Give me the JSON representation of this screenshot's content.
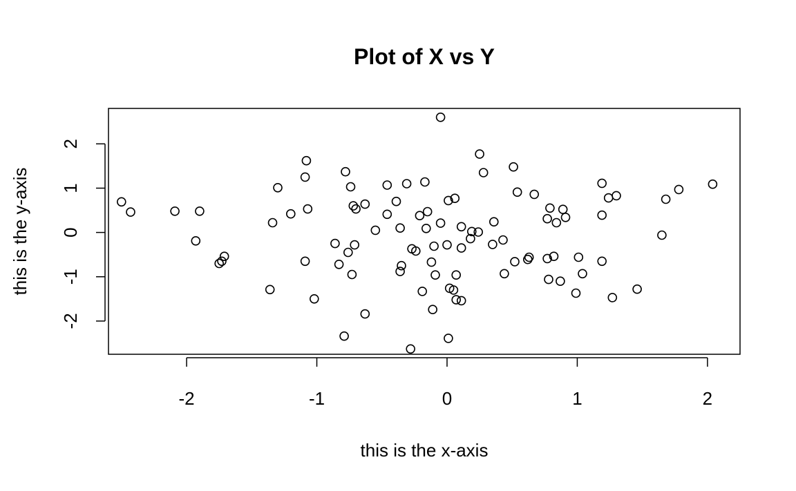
{
  "chart_data": {
    "type": "scatter",
    "title": "Plot of X vs Y",
    "xlabel": "this is the x-axis",
    "ylabel": "this is the y-axis",
    "xlim": [
      -2.6,
      2.25
    ],
    "ylim": [
      -2.75,
      2.8
    ],
    "xticks": [
      -2,
      -1,
      0,
      1,
      2
    ],
    "yticks": [
      -2,
      -1,
      0,
      1,
      2
    ],
    "grid": false,
    "legend": "none",
    "point_color": "#000000",
    "points": [
      {
        "x": -0.05,
        "y": 2.6
      },
      {
        "x": 0.25,
        "y": 1.77
      },
      {
        "x": -1.08,
        "y": 1.62
      },
      {
        "x": 0.51,
        "y": 1.48
      },
      {
        "x": -0.78,
        "y": 1.37
      },
      {
        "x": 0.28,
        "y": 1.35
      },
      {
        "x": -1.09,
        "y": 1.25
      },
      {
        "x": -0.17,
        "y": 1.14
      },
      {
        "x": 1.19,
        "y": 1.11
      },
      {
        "x": -0.31,
        "y": 1.1
      },
      {
        "x": 2.04,
        "y": 1.09
      },
      {
        "x": -0.46,
        "y": 1.07
      },
      {
        "x": -0.74,
        "y": 1.03
      },
      {
        "x": -1.3,
        "y": 1.01
      },
      {
        "x": 1.78,
        "y": 0.97
      },
      {
        "x": 0.54,
        "y": 0.91
      },
      {
        "x": 0.67,
        "y": 0.86
      },
      {
        "x": 1.3,
        "y": 0.83
      },
      {
        "x": 1.24,
        "y": 0.78
      },
      {
        "x": 0.06,
        "y": 0.77
      },
      {
        "x": 1.68,
        "y": 0.75
      },
      {
        "x": 0.01,
        "y": 0.72
      },
      {
        "x": -0.39,
        "y": 0.7
      },
      {
        "x": -2.5,
        "y": 0.69
      },
      {
        "x": -0.63,
        "y": 0.64
      },
      {
        "x": -0.72,
        "y": 0.6
      },
      {
        "x": 0.79,
        "y": 0.55
      },
      {
        "x": -1.07,
        "y": 0.53
      },
      {
        "x": -0.7,
        "y": 0.53
      },
      {
        "x": 0.89,
        "y": 0.52
      },
      {
        "x": -2.09,
        "y": 0.48
      },
      {
        "x": -1.9,
        "y": 0.48
      },
      {
        "x": -0.15,
        "y": 0.47
      },
      {
        "x": -2.43,
        "y": 0.46
      },
      {
        "x": -1.2,
        "y": 0.42
      },
      {
        "x": -0.46,
        "y": 0.41
      },
      {
        "x": 1.19,
        "y": 0.39
      },
      {
        "x": -0.21,
        "y": 0.38
      },
      {
        "x": 0.91,
        "y": 0.34
      },
      {
        "x": 0.77,
        "y": 0.31
      },
      {
        "x": 0.36,
        "y": 0.24
      },
      {
        "x": -1.34,
        "y": 0.22
      },
      {
        "x": 0.84,
        "y": 0.22
      },
      {
        "x": -0.05,
        "y": 0.21
      },
      {
        "x": 0.11,
        "y": 0.13
      },
      {
        "x": -0.36,
        "y": 0.1
      },
      {
        "x": -0.16,
        "y": 0.09
      },
      {
        "x": -0.55,
        "y": 0.05
      },
      {
        "x": 0.19,
        "y": 0.02
      },
      {
        "x": 0.24,
        "y": 0.01
      },
      {
        "x": 1.65,
        "y": -0.06
      },
      {
        "x": 0.18,
        "y": -0.14
      },
      {
        "x": 0.43,
        "y": -0.17
      },
      {
        "x": -1.93,
        "y": -0.19
      },
      {
        "x": -0.86,
        "y": -0.25
      },
      {
        "x": 0.35,
        "y": -0.27
      },
      {
        "x": -0.71,
        "y": -0.28
      },
      {
        "x": 0.0,
        "y": -0.28
      },
      {
        "x": -0.1,
        "y": -0.31
      },
      {
        "x": 0.11,
        "y": -0.35
      },
      {
        "x": -0.27,
        "y": -0.37
      },
      {
        "x": -0.24,
        "y": -0.42
      },
      {
        "x": -0.76,
        "y": -0.45
      },
      {
        "x": -1.71,
        "y": -0.54
      },
      {
        "x": 0.82,
        "y": -0.54
      },
      {
        "x": 1.01,
        "y": -0.56
      },
      {
        "x": 0.63,
        "y": -0.56
      },
      {
        "x": 0.77,
        "y": -0.59
      },
      {
        "x": 0.62,
        "y": -0.61
      },
      {
        "x": -1.73,
        "y": -0.65
      },
      {
        "x": -1.09,
        "y": -0.65
      },
      {
        "x": 1.19,
        "y": -0.65
      },
      {
        "x": 0.52,
        "y": -0.66
      },
      {
        "x": -0.12,
        "y": -0.67
      },
      {
        "x": -1.75,
        "y": -0.7
      },
      {
        "x": -0.83,
        "y": -0.72
      },
      {
        "x": -0.35,
        "y": -0.75
      },
      {
        "x": -0.36,
        "y": -0.88
      },
      {
        "x": 0.44,
        "y": -0.93
      },
      {
        "x": 1.04,
        "y": -0.93
      },
      {
        "x": -0.73,
        "y": -0.95
      },
      {
        "x": -0.09,
        "y": -0.96
      },
      {
        "x": 0.07,
        "y": -0.96
      },
      {
        "x": 0.78,
        "y": -1.06
      },
      {
        "x": 0.87,
        "y": -1.1
      },
      {
        "x": 0.02,
        "y": -1.26
      },
      {
        "x": 1.46,
        "y": -1.28
      },
      {
        "x": -1.36,
        "y": -1.29
      },
      {
        "x": 0.05,
        "y": -1.3
      },
      {
        "x": -0.19,
        "y": -1.33
      },
      {
        "x": 0.99,
        "y": -1.37
      },
      {
        "x": 1.27,
        "y": -1.47
      },
      {
        "x": -1.02,
        "y": -1.5
      },
      {
        "x": 0.07,
        "y": -1.52
      },
      {
        "x": 0.11,
        "y": -1.54
      },
      {
        "x": -0.11,
        "y": -1.74
      },
      {
        "x": -0.63,
        "y": -1.84
      },
      {
        "x": -0.79,
        "y": -2.34
      },
      {
        "x": 0.01,
        "y": -2.39
      },
      {
        "x": -0.28,
        "y": -2.63
      }
    ]
  }
}
